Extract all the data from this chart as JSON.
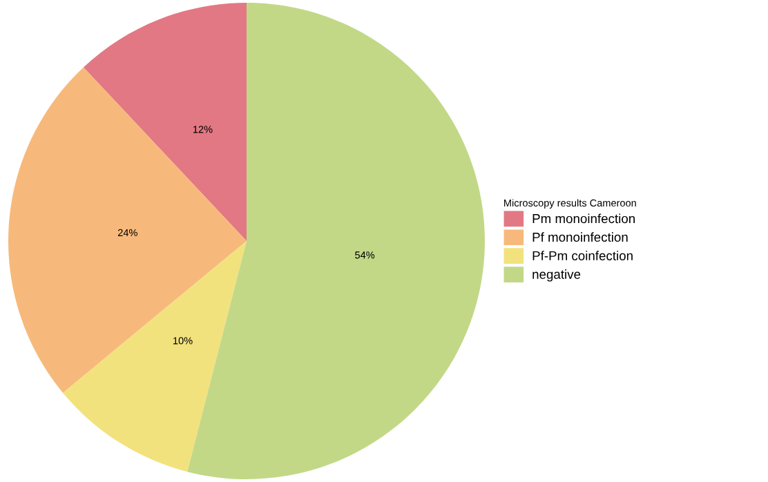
{
  "chart_data": {
    "type": "pie",
    "legend_title": "Microscopy results Cameroon",
    "categories": [
      "Pm monoinfection",
      "Pf monoinfection",
      "Pf-Pm coinfection",
      "negative"
    ],
    "values": [
      12,
      24,
      10,
      54
    ],
    "colors": [
      "#e27883",
      "#f7b97b",
      "#f2e27e",
      "#c2d887"
    ],
    "value_labels": [
      "12%",
      "24%",
      "10%",
      "54%"
    ],
    "legend": "right"
  }
}
